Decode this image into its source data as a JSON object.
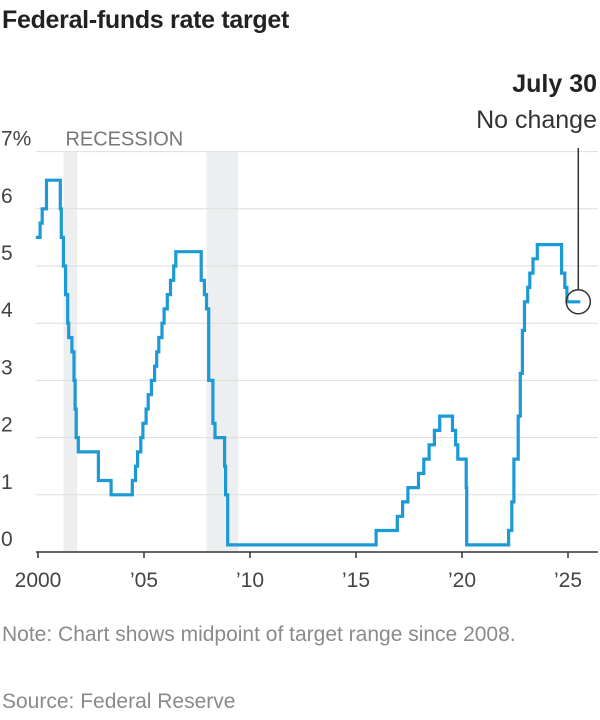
{
  "title": "Federal-funds rate target",
  "note": "Note: Chart shows midpoint of target range since 2008.",
  "source": "Source: Federal Reserve",
  "colors": {
    "line": "#1b9ad6",
    "recession": "#eceef0",
    "grid": "#dddddd",
    "axis": "#333333",
    "label": "#444444",
    "muted": "#777777"
  },
  "chart_data": {
    "type": "line",
    "title": "Federal-funds rate target",
    "xlabel": "",
    "ylabel": "",
    "xlim": [
      1999.5,
      2025.7
    ],
    "ylim": [
      0,
      7
    ],
    "grid": true,
    "y_ticks": [
      {
        "value": 0,
        "label": "0"
      },
      {
        "value": 1,
        "label": "1"
      },
      {
        "value": 2,
        "label": "2"
      },
      {
        "value": 3,
        "label": "3"
      },
      {
        "value": 4,
        "label": "4"
      },
      {
        "value": 5,
        "label": "5"
      },
      {
        "value": 6,
        "label": "6"
      },
      {
        "value": 7,
        "label": "7%"
      }
    ],
    "x_ticks": [
      {
        "value": 2000,
        "label": "2000"
      },
      {
        "value": 2005,
        "label": "’05"
      },
      {
        "value": 2010,
        "label": "’10"
      },
      {
        "value": 2015,
        "label": "’15"
      },
      {
        "value": 2020,
        "label": "’20"
      },
      {
        "value": 2025,
        "label": "’25"
      }
    ],
    "recession_label": "RECESSION",
    "recessions": [
      [
        2001.2,
        2001.85
      ],
      [
        2007.95,
        2009.45
      ]
    ],
    "annotation": {
      "x": 2025.58,
      "y": 4.375,
      "title": "July 30",
      "text": "No change"
    },
    "series": [
      {
        "points": [
          [
            1999.9,
            5.5
          ],
          [
            2000.1,
            5.75
          ],
          [
            2000.2,
            6.0
          ],
          [
            2000.4,
            6.5
          ],
          [
            2001.0,
            6.5
          ],
          [
            2001.05,
            6.0
          ],
          [
            2001.1,
            5.5
          ],
          [
            2001.2,
            5.0
          ],
          [
            2001.3,
            4.5
          ],
          [
            2001.4,
            4.0
          ],
          [
            2001.45,
            3.75
          ],
          [
            2001.6,
            3.5
          ],
          [
            2001.7,
            3.0
          ],
          [
            2001.75,
            2.5
          ],
          [
            2001.8,
            2.0
          ],
          [
            2001.9,
            1.75
          ],
          [
            2002.85,
            1.25
          ],
          [
            2003.45,
            1.0
          ],
          [
            2004.45,
            1.25
          ],
          [
            2004.6,
            1.5
          ],
          [
            2004.7,
            1.75
          ],
          [
            2004.85,
            2.0
          ],
          [
            2004.95,
            2.25
          ],
          [
            2005.1,
            2.5
          ],
          [
            2005.2,
            2.75
          ],
          [
            2005.35,
            3.0
          ],
          [
            2005.5,
            3.25
          ],
          [
            2005.6,
            3.5
          ],
          [
            2005.7,
            3.75
          ],
          [
            2005.85,
            4.0
          ],
          [
            2005.95,
            4.25
          ],
          [
            2006.1,
            4.5
          ],
          [
            2006.25,
            4.75
          ],
          [
            2006.4,
            5.0
          ],
          [
            2006.5,
            5.25
          ],
          [
            2007.7,
            5.25
          ],
          [
            2007.7,
            4.75
          ],
          [
            2007.85,
            4.5
          ],
          [
            2007.95,
            4.25
          ],
          [
            2008.05,
            3.0
          ],
          [
            2008.25,
            2.25
          ],
          [
            2008.35,
            2.0
          ],
          [
            2008.8,
            1.5
          ],
          [
            2008.85,
            1.0
          ],
          [
            2008.95,
            0.125
          ],
          [
            2015.95,
            0.375
          ],
          [
            2016.95,
            0.625
          ],
          [
            2017.2,
            0.875
          ],
          [
            2017.45,
            1.125
          ],
          [
            2017.95,
            1.375
          ],
          [
            2018.2,
            1.625
          ],
          [
            2018.45,
            1.875
          ],
          [
            2018.7,
            2.125
          ],
          [
            2018.95,
            2.375
          ],
          [
            2019.55,
            2.125
          ],
          [
            2019.7,
            1.875
          ],
          [
            2019.8,
            1.625
          ],
          [
            2020.2,
            1.125
          ],
          [
            2020.22,
            0.125
          ],
          [
            2022.2,
            0.375
          ],
          [
            2022.35,
            0.875
          ],
          [
            2022.45,
            1.625
          ],
          [
            2022.65,
            2.375
          ],
          [
            2022.75,
            3.125
          ],
          [
            2022.85,
            3.875
          ],
          [
            2022.95,
            4.375
          ],
          [
            2023.1,
            4.625
          ],
          [
            2023.2,
            4.875
          ],
          [
            2023.35,
            5.125
          ],
          [
            2023.55,
            5.375
          ],
          [
            2024.7,
            4.875
          ],
          [
            2024.85,
            4.625
          ],
          [
            2024.95,
            4.375
          ],
          [
            2025.58,
            4.375
          ]
        ]
      }
    ]
  }
}
